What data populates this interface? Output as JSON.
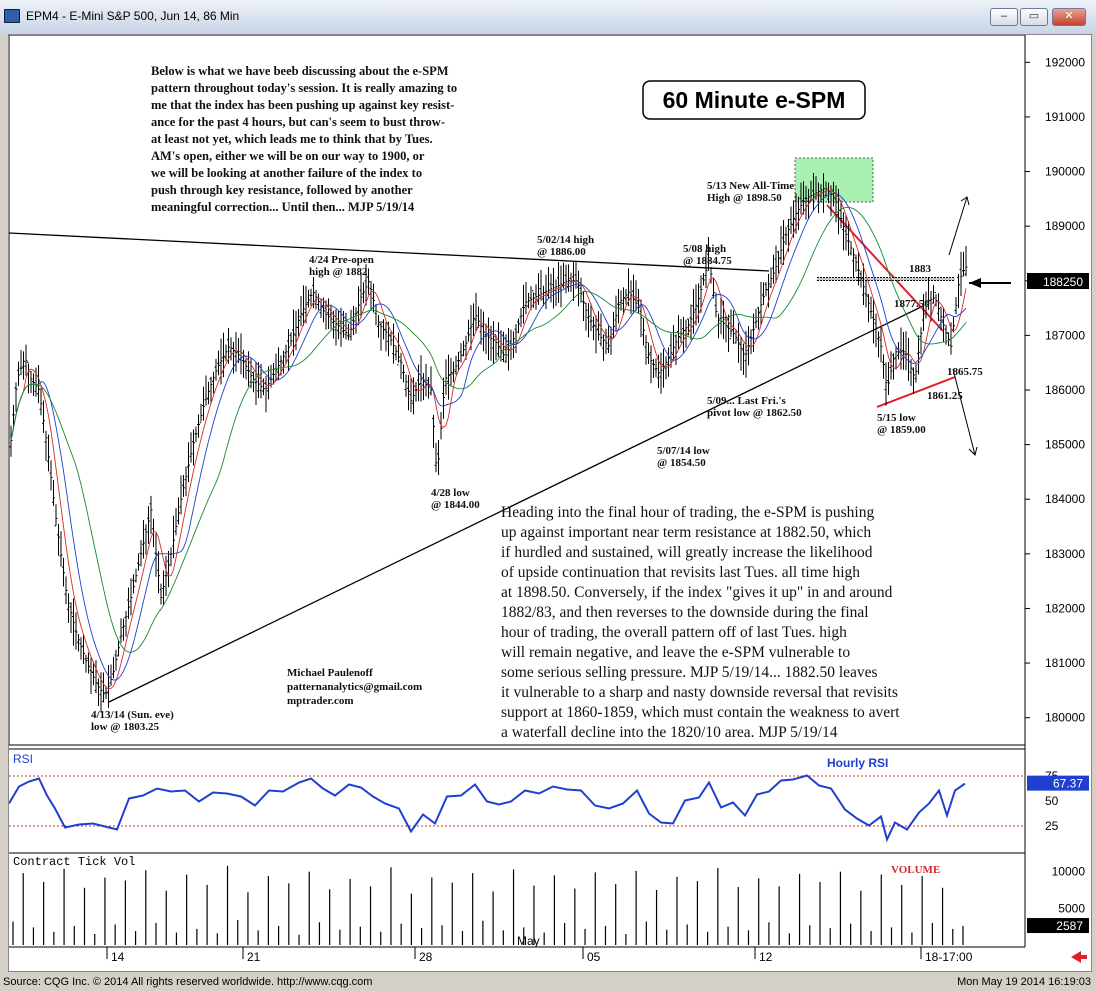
{
  "window": {
    "title": "EPM4 - E-Mini S&P 500, Jun 14, 86 Min",
    "minimize_label": "–",
    "restore_label": "▭",
    "close_label": "✕"
  },
  "status_bar": {
    "left": "Source: CQG Inc. © 2014 All rights reserved worldwide. http://www.cqg.com",
    "right": "Mon May 19 2014 16:19:03"
  },
  "chart_data": [
    {
      "type": "candlestick",
      "title": "60 Minute e-SPM",
      "ylim": [
        1795,
        1925
      ],
      "y_ticks": [
        {
          "value": 1800,
          "label": "180000"
        },
        {
          "value": 1810,
          "label": "181000"
        },
        {
          "value": 1820,
          "label": "182000"
        },
        {
          "value": 1830,
          "label": "183000"
        },
        {
          "value": 1840,
          "label": "184000"
        },
        {
          "value": 1850,
          "label": "185000"
        },
        {
          "value": 1860,
          "label": "186000"
        },
        {
          "value": 1870,
          "label": "187000"
        },
        {
          "value": 1880,
          "label": "188000"
        },
        {
          "value": 1890,
          "label": "189000"
        },
        {
          "value": 1900,
          "label": "190000"
        },
        {
          "value": 1910,
          "label": "191000"
        },
        {
          "value": 1920,
          "label": "192000"
        }
      ],
      "x_ticks": [
        "14",
        "21",
        "28",
        "05",
        "12",
        "18-17:00"
      ],
      "month_label": "May",
      "last_price_label": "188250",
      "last_price": 1882.5,
      "price_path": [
        [
          0,
          1847
        ],
        [
          8,
          1862
        ],
        [
          16,
          1866
        ],
        [
          22,
          1862
        ],
        [
          30,
          1860
        ],
        [
          38,
          1850
        ],
        [
          48,
          1835
        ],
        [
          58,
          1822
        ],
        [
          68,
          1815
        ],
        [
          78,
          1810
        ],
        [
          88,
          1806
        ],
        [
          96,
          1804
        ],
        [
          104,
          1808
        ],
        [
          112,
          1815
        ],
        [
          122,
          1822
        ],
        [
          132,
          1830
        ],
        [
          142,
          1838
        ],
        [
          152,
          1822
        ],
        [
          162,
          1830
        ],
        [
          172,
          1840
        ],
        [
          184,
          1850
        ],
        [
          196,
          1858
        ],
        [
          208,
          1864
        ],
        [
          220,
          1868
        ],
        [
          232,
          1866
        ],
        [
          244,
          1862
        ],
        [
          256,
          1860
        ],
        [
          268,
          1864
        ],
        [
          280,
          1868
        ],
        [
          292,
          1874
        ],
        [
          304,
          1878
        ],
        [
          316,
          1874
        ],
        [
          328,
          1872
        ],
        [
          340,
          1870
        ],
        [
          352,
          1877
        ],
        [
          360,
          1880
        ],
        [
          370,
          1872
        ],
        [
          380,
          1870
        ],
        [
          392,
          1865
        ],
        [
          402,
          1858
        ],
        [
          412,
          1862
        ],
        [
          422,
          1860
        ],
        [
          428,
          1844
        ],
        [
          436,
          1862
        ],
        [
          446,
          1864
        ],
        [
          456,
          1868
        ],
        [
          466,
          1874
        ],
        [
          476,
          1870
        ],
        [
          486,
          1869
        ],
        [
          496,
          1866
        ],
        [
          506,
          1870
        ],
        [
          516,
          1876
        ],
        [
          526,
          1877
        ],
        [
          536,
          1878
        ],
        [
          548,
          1879
        ],
        [
          558,
          1880
        ],
        [
          568,
          1880
        ],
        [
          578,
          1874
        ],
        [
          590,
          1870
        ],
        [
          600,
          1868
        ],
        [
          610,
          1876
        ],
        [
          620,
          1878
        ],
        [
          630,
          1875
        ],
        [
          640,
          1866
        ],
        [
          650,
          1863
        ],
        [
          660,
          1866
        ],
        [
          670,
          1870
        ],
        [
          680,
          1872
        ],
        [
          690,
          1877
        ],
        [
          700,
          1884
        ],
        [
          708,
          1873
        ],
        [
          716,
          1872
        ],
        [
          726,
          1870
        ],
        [
          736,
          1866
        ],
        [
          746,
          1872
        ],
        [
          756,
          1878
        ],
        [
          766,
          1882
        ],
        [
          776,
          1888
        ],
        [
          786,
          1892
        ],
        [
          796,
          1895
        ],
        [
          806,
          1896
        ],
        [
          816,
          1897
        ],
        [
          826,
          1895
        ],
        [
          836,
          1889
        ],
        [
          846,
          1884
        ],
        [
          856,
          1878
        ],
        [
          866,
          1872
        ],
        [
          872,
          1868
        ],
        [
          878,
          1860
        ],
        [
          886,
          1867
        ],
        [
          896,
          1867
        ],
        [
          906,
          1862
        ],
        [
          916,
          1876
        ],
        [
          926,
          1877
        ],
        [
          936,
          1871
        ],
        [
          942,
          1868
        ],
        [
          950,
          1880
        ],
        [
          956,
          1882.5
        ]
      ],
      "annotations": [
        {
          "lines": [
            "Below is what we have beeb discussing about the e-SPM",
            "pattern throughout today's session. It is really amazing to",
            "me that the index has been pushing up against key resist-",
            "ance for the past 4 hours, but can's seem to bust throw-",
            "at least not yet, which leads me to think that by Tues.",
            "AM's open, either we will be on our way to 1900, or",
            "we will be looking at another failure of the index to",
            "push through key resistance, followed by another",
            "meaningful correction... Until then... MJP  5/19/14"
          ]
        },
        {
          "lines": [
            "4/24 Pre-open",
            "high @ 1882"
          ]
        },
        {
          "lines": [
            "5/02/14 high",
            "@ 1886.00"
          ]
        },
        {
          "lines": [
            "5/08 high",
            "@ 1884.75"
          ]
        },
        {
          "lines": [
            "5/13 New All-Time",
            "High @ 1898.50"
          ]
        },
        {
          "lines": [
            "4/28 low",
            "@ 1844.00"
          ]
        },
        {
          "lines": [
            "5/07/14 low",
            "@ 1854.50"
          ]
        },
        {
          "lines": [
            "5/09... Last Fri.'s",
            "pivot low @ 1862.50"
          ]
        },
        {
          "lines": [
            "5/15 low",
            "@ 1859.00"
          ]
        },
        {
          "lines": [
            "4/13/14 (Sun. eve)",
            "low @ 1803.25"
          ]
        },
        {
          "lines": [
            "1883"
          ]
        },
        {
          "lines": [
            "1877.50"
          ]
        },
        {
          "lines": [
            "1865.75"
          ]
        },
        {
          "lines": [
            "1861.25"
          ]
        },
        {
          "lines": [
            "Michael Paulenoff",
            "patternanalytics@gmail.com",
            "mptrader.com"
          ]
        },
        {
          "lines": [
            "Heading into the final hour of trading, the e-SPM is pushing",
            "up against important near term resistance at 1882.50, which",
            "if hurdled and sustained, will greatly increase the likelihood",
            "of upside continuation that revisits last Tues. all time high",
            "at 1898.50. Conversely, if the index \"gives it up\" in and around",
            "1882/83, and then reverses to the downside during the final",
            "hour of trading, the overall pattern off of last Tues. high",
            "will remain negative, and leave the e-SPM vulnerable to",
            "some serious selling pressure.  MJP  5/19/14... 1882.50 leaves",
            "it vulnerable to a sharp and nasty downside reversal that revisits",
            "support at 1860-1859, which must contain the weakness to avert",
            "a waterfall decline into the 1820/10 area.  MJP  5/19/14"
          ]
        }
      ]
    },
    {
      "type": "line",
      "title": "RSI",
      "series_label": "Hourly RSI",
      "ylim": [
        0,
        100
      ],
      "y_ticks": [
        {
          "value": 25,
          "label": "25"
        },
        {
          "value": 50,
          "label": "50"
        },
        {
          "value": 75,
          "label": "75"
        }
      ],
      "reference_lines": [
        25,
        75
      ],
      "last_value_label": "67.37",
      "values": [
        [
          0,
          50
        ],
        [
          10,
          62
        ],
        [
          20,
          72
        ],
        [
          30,
          70
        ],
        [
          38,
          58
        ],
        [
          46,
          40
        ],
        [
          56,
          26
        ],
        [
          70,
          24
        ],
        [
          84,
          30
        ],
        [
          96,
          22
        ],
        [
          108,
          24
        ],
        [
          120,
          50
        ],
        [
          134,
          58
        ],
        [
          148,
          60
        ],
        [
          162,
          62
        ],
        [
          176,
          58
        ],
        [
          190,
          52
        ],
        [
          204,
          56
        ],
        [
          218,
          60
        ],
        [
          232,
          52
        ],
        [
          246,
          48
        ],
        [
          260,
          58
        ],
        [
          274,
          62
        ],
        [
          290,
          66
        ],
        [
          302,
          75
        ],
        [
          314,
          60
        ],
        [
          326,
          58
        ],
        [
          340,
          64
        ],
        [
          352,
          66
        ],
        [
          364,
          52
        ],
        [
          376,
          50
        ],
        [
          390,
          40
        ],
        [
          402,
          22
        ],
        [
          414,
          34
        ],
        [
          426,
          30
        ],
        [
          438,
          52
        ],
        [
          452,
          58
        ],
        [
          466,
          64
        ],
        [
          478,
          52
        ],
        [
          490,
          44
        ],
        [
          502,
          52
        ],
        [
          516,
          58
        ],
        [
          530,
          60
        ],
        [
          544,
          62
        ],
        [
          558,
          64
        ],
        [
          572,
          58
        ],
        [
          586,
          48
        ],
        [
          600,
          40
        ],
        [
          614,
          50
        ],
        [
          628,
          58
        ],
        [
          640,
          40
        ],
        [
          652,
          26
        ],
        [
          664,
          30
        ],
        [
          676,
          48
        ],
        [
          690,
          56
        ],
        [
          700,
          66
        ],
        [
          712,
          46
        ],
        [
          724,
          46
        ],
        [
          736,
          38
        ],
        [
          748,
          54
        ],
        [
          760,
          62
        ],
        [
          772,
          68
        ],
        [
          784,
          74
        ],
        [
          798,
          73
        ],
        [
          810,
          68
        ],
        [
          822,
          60
        ],
        [
          836,
          44
        ],
        [
          848,
          30
        ],
        [
          860,
          28
        ],
        [
          872,
          32
        ],
        [
          878,
          14
        ],
        [
          886,
          26
        ],
        [
          898,
          24
        ],
        [
          910,
          36
        ],
        [
          920,
          50
        ],
        [
          930,
          58
        ],
        [
          938,
          38
        ],
        [
          946,
          58
        ],
        [
          956,
          67.37
        ]
      ]
    },
    {
      "type": "bar",
      "title": "Contract Tick Vol",
      "series_label": "VOLUME",
      "y_ticks": [
        {
          "value": 5000,
          "label": "5000"
        },
        {
          "value": 10000,
          "label": "10000"
        }
      ],
      "ylim": [
        0,
        12000
      ],
      "last_value_label": "2587",
      "values": [
        3200,
        9800,
        2400,
        8600,
        1800,
        10400,
        2600,
        7800,
        1500,
        9200,
        2800,
        8800,
        1900,
        10200,
        3000,
        7400,
        1700,
        9600,
        2200,
        8200,
        1600,
        10800,
        3400,
        7200,
        2000,
        9400,
        2600,
        8400,
        1400,
        10000,
        3100,
        7600,
        2100,
        9000,
        2500,
        8000,
        1800,
        10600,
        2900,
        7000,
        2300,
        9200,
        2700,
        8500,
        1900,
        9800,
        3300,
        7300,
        2000,
        10300,
        2400,
        8100,
        1700,
        9500,
        3000,
        7700,
        2200,
        9900,
        2600,
        8300,
        1500,
        10100,
        3200,
        7500,
        2100,
        9300,
        2800,
        8700,
        1800,
        10500,
        2500,
        7900,
        2000,
        9100,
        3100,
        8000,
        1600,
        9700,
        2700,
        8600,
        2300,
        10000,
        2900,
        7400,
        1900,
        9600,
        2400,
        8200,
        1700,
        9400,
        3000,
        7800,
        2200,
        2587
      ]
    }
  ]
}
